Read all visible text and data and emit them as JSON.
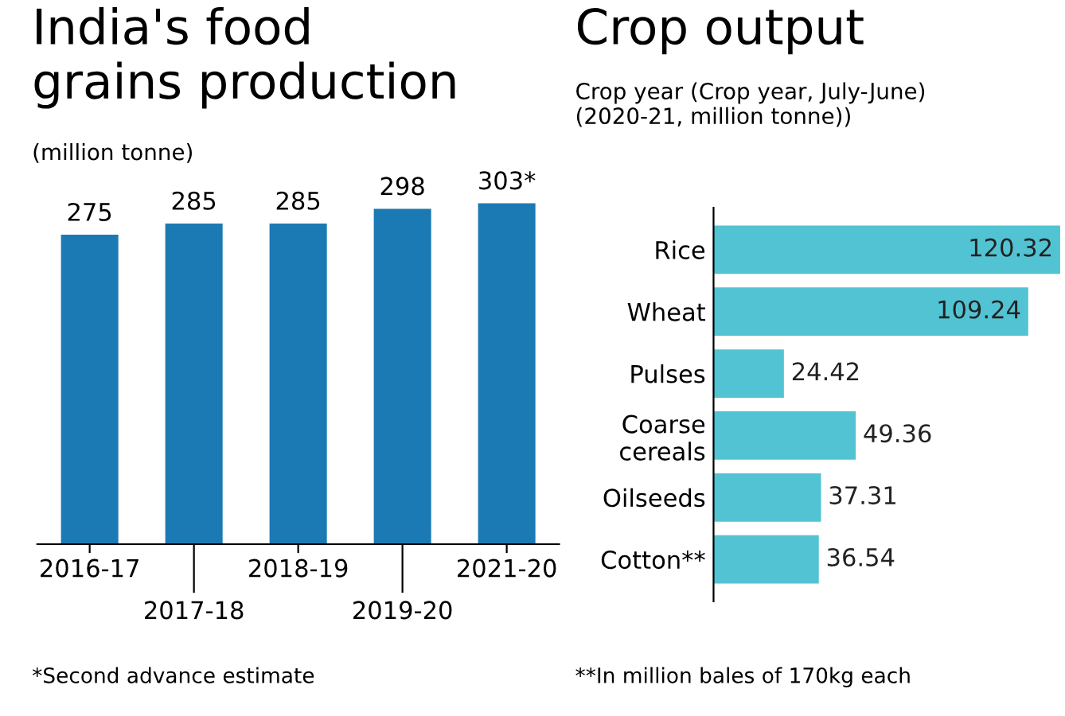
{
  "chart_data": [
    {
      "type": "bar",
      "title": "India's food\ngrains production",
      "subtitle": "(million tonne)",
      "categories": [
        "2016-17",
        "2017-18",
        "2018-19",
        "2019-20",
        "2021-20"
      ],
      "values": [
        275,
        285,
        285,
        298,
        303
      ],
      "value_labels": [
        "275",
        "285",
        "285",
        "298",
        "303*"
      ],
      "color": "#1b7ab3",
      "tick_labels": "x",
      "grid": false,
      "legend": false,
      "annotations": [
        "*Second advance estimate"
      ]
    },
    {
      "type": "bar",
      "orientation": "horizontal",
      "title": "Crop output",
      "subtitle": "Crop year (Crop year, July-June)\n(2020-21, million tonne))",
      "categories": [
        "Rice",
        "Wheat",
        "Pulses",
        "Coarse\ncereals",
        "Oilseeds",
        "Cotton**"
      ],
      "values": [
        120.32,
        109.24,
        24.42,
        49.36,
        37.31,
        36.54
      ],
      "color": "#52c3d3",
      "xlim": [
        0,
        122
      ],
      "tick_labels": "y",
      "data_labels": true,
      "grid": false,
      "legend": false,
      "annotations": [
        "**In million bales of 170kg each"
      ]
    }
  ]
}
